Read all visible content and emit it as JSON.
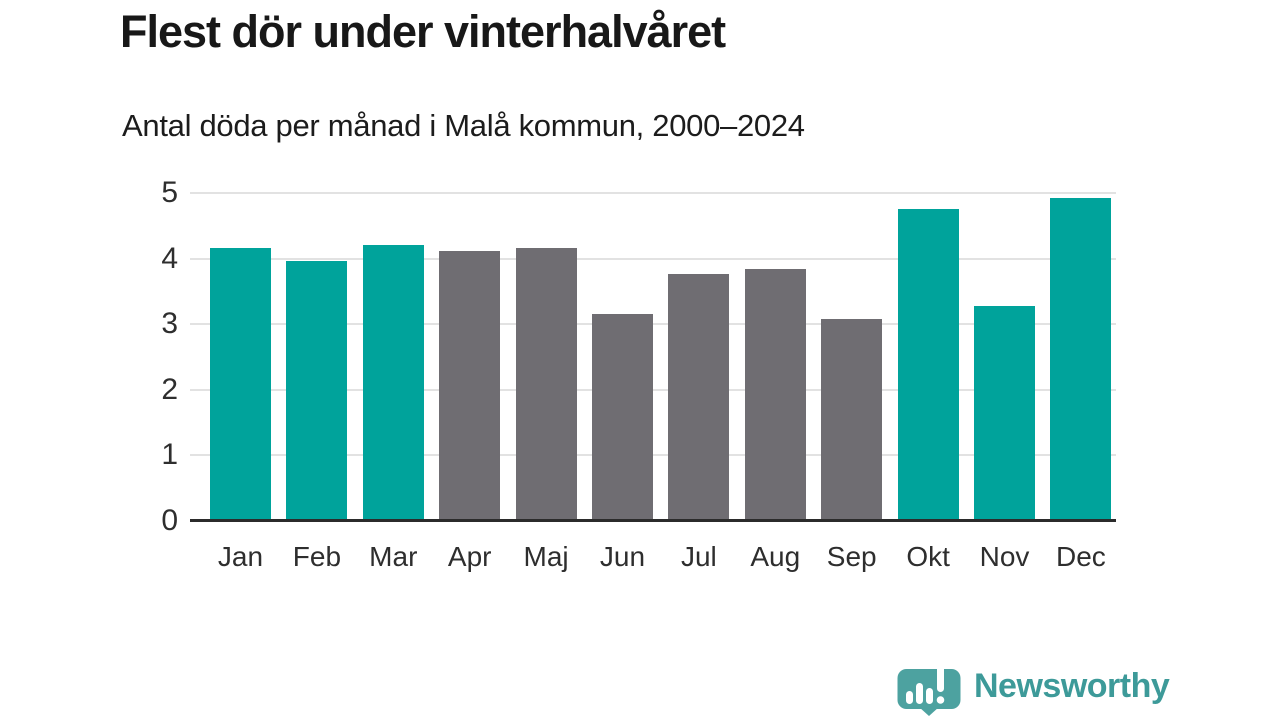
{
  "header": {
    "title": "Flest dör under vinterhalvåret",
    "subtitle": "Antal döda per månad i Malå kommun, 2000–2024"
  },
  "chart_data": {
    "type": "bar",
    "title": "Flest dör under vinterhalvåret",
    "subtitle": "Antal döda per månad i Malå kommun, 2000–2024",
    "categories": [
      "Jan",
      "Feb",
      "Mar",
      "Apr",
      "Maj",
      "Jun",
      "Jul",
      "Aug",
      "Sep",
      "Okt",
      "Nov",
      "Dec"
    ],
    "values": [
      4.16,
      3.96,
      4.2,
      4.12,
      4.16,
      3.16,
      3.76,
      3.84,
      3.08,
      4.76,
      3.28,
      4.92
    ],
    "highlighted": [
      true,
      true,
      true,
      false,
      false,
      false,
      false,
      false,
      false,
      true,
      true,
      true
    ],
    "xlabel": "",
    "ylabel": "",
    "ylim": [
      0,
      5
    ],
    "yticks": [
      0,
      1,
      2,
      3,
      4,
      5
    ],
    "grid": true,
    "legend": "none",
    "colors": {
      "highlight": "#00a39b",
      "default": "#6f6d72"
    }
  },
  "footer": {
    "brand": "Newsworthy",
    "brand_color": "#3d9a99",
    "logo_color": "#4da2a0",
    "logo_icon": "newsworthy-speech-bubble-chart-icon"
  }
}
